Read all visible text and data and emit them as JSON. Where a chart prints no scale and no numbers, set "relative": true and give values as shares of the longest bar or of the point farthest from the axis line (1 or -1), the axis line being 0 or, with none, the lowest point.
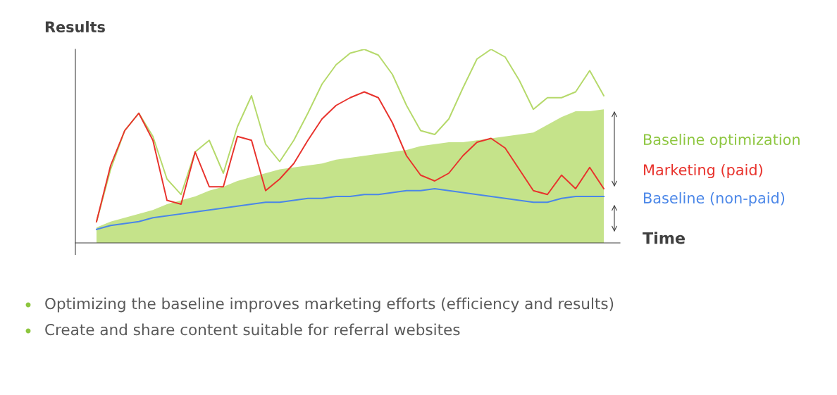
{
  "chart_data": {
    "type": "line",
    "relative": true,
    "ylabel": "Results",
    "xlabel": "Time",
    "legend": false,
    "grid": false,
    "marker": "none",
    "line_style": "solid",
    "categories": [
      null,
      null,
      null,
      null,
      null,
      null,
      null,
      null,
      null,
      null,
      null,
      null,
      null,
      null,
      null,
      null,
      null,
      null,
      null,
      null,
      null,
      null,
      null,
      null,
      null,
      null,
      null,
      null,
      null,
      null,
      null,
      null,
      null,
      null,
      null,
      null,
      null
    ],
    "series": [
      {
        "type": "area",
        "color": "#c5e38a",
        "values": [
          0.08,
          0.11,
          0.13,
          0.15,
          0.17,
          0.2,
          0.22,
          0.24,
          0.27,
          0.29,
          0.32,
          0.34,
          0.36,
          0.38,
          0.39,
          0.4,
          0.41,
          0.43,
          0.44,
          0.45,
          0.46,
          0.47,
          0.48,
          0.5,
          0.51,
          0.52,
          0.52,
          0.53,
          0.54,
          0.55,
          0.56,
          0.57,
          0.61,
          0.65,
          0.68,
          0.68,
          0.69
        ]
      },
      {
        "name": "Baseline optimization",
        "color": "#b5d96a",
        "values": [
          0.11,
          0.38,
          0.58,
          0.67,
          0.55,
          0.33,
          0.25,
          0.47,
          0.53,
          0.36,
          0.6,
          0.76,
          0.51,
          0.42,
          0.53,
          0.67,
          0.82,
          0.92,
          0.98,
          1.0,
          0.97,
          0.87,
          0.71,
          0.58,
          0.56,
          0.64,
          0.8,
          0.95,
          1.0,
          0.96,
          0.84,
          0.69,
          0.75,
          0.75,
          0.78,
          0.89,
          0.76
        ]
      },
      {
        "name": "Marketing (paid)",
        "color": "#e8322c",
        "values": [
          0.11,
          0.4,
          0.58,
          0.67,
          0.53,
          0.22,
          0.2,
          0.47,
          0.29,
          0.29,
          0.55,
          0.53,
          0.27,
          0.33,
          0.41,
          0.53,
          0.64,
          0.71,
          0.75,
          0.78,
          0.75,
          0.62,
          0.45,
          0.35,
          0.32,
          0.36,
          0.45,
          0.52,
          0.54,
          0.49,
          0.38,
          0.27,
          0.25,
          0.35,
          0.28,
          0.39,
          0.28
        ]
      },
      {
        "name": "Baseline (non-paid)",
        "color": "#4a86e8",
        "values": [
          0.07,
          0.09,
          0.1,
          0.11,
          0.13,
          0.14,
          0.15,
          0.16,
          0.17,
          0.18,
          0.19,
          0.2,
          0.21,
          0.21,
          0.22,
          0.23,
          0.23,
          0.24,
          0.24,
          0.25,
          0.25,
          0.26,
          0.27,
          0.27,
          0.28,
          0.27,
          0.26,
          0.25,
          0.24,
          0.23,
          0.22,
          0.21,
          0.21,
          0.23,
          0.24,
          0.24,
          0.24
        ]
      }
    ],
    "annotations": [
      "Optimizing the baseline improves marketing efforts (efficiency and results)",
      "Create and share content suitable for referral websites"
    ]
  }
}
